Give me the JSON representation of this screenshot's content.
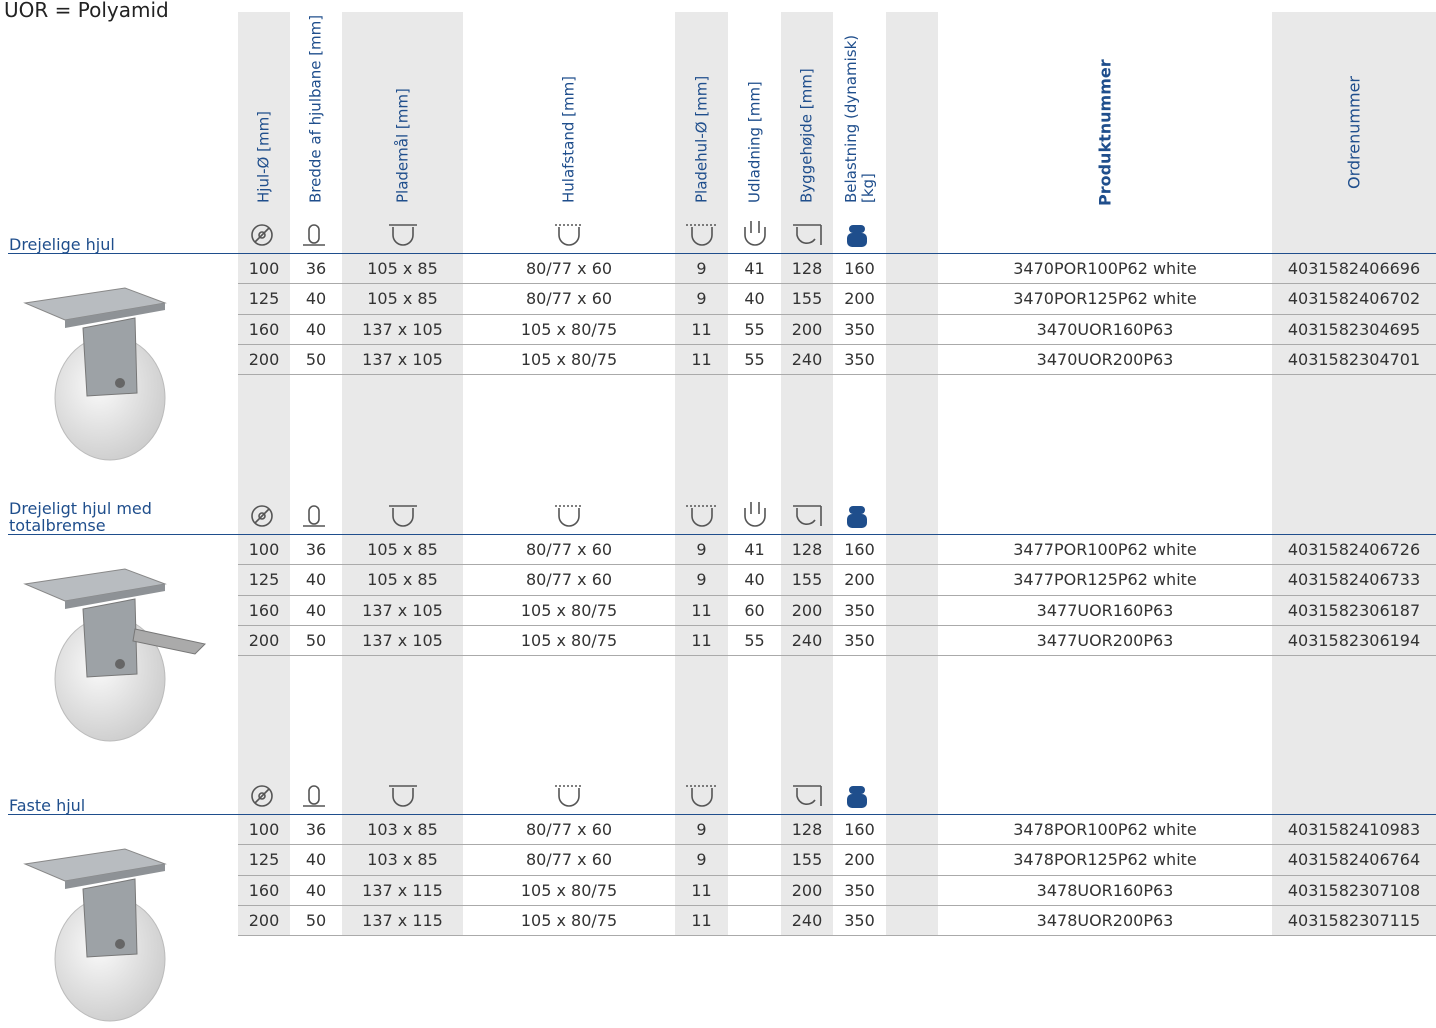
{
  "title": "UOR = Polyamid",
  "columns": [
    "Hjul-Ø [mm]",
    "Bredde af hjulbane [mm]",
    "Plademål [mm]",
    "Hulafstand [mm]",
    "Pladehul-Ø [mm]",
    "Udladning [mm]",
    "Byggehøjde [mm]",
    "Belastning (dynamisk) [kg]",
    "Produktnummer",
    "Ordrenummer"
  ],
  "sections": [
    {
      "label": "Drejelige hjul",
      "rows": [
        [
          "100",
          "36",
          "105 x 85",
          "80/77 x 60",
          "9",
          "41",
          "128",
          "160",
          "3470POR100P62 white",
          "4031582406696"
        ],
        [
          "125",
          "40",
          "105 x 85",
          "80/77 x 60",
          "9",
          "40",
          "155",
          "200",
          "3470POR125P62 white",
          "4031582406702"
        ],
        [
          "160",
          "40",
          "137 x 105",
          "105 x 80/75",
          "11",
          "55",
          "200",
          "350",
          "3470UOR160P63",
          "4031582304695"
        ],
        [
          "200",
          "50",
          "137 x 105",
          "105 x 80/75",
          "11",
          "55",
          "240",
          "350",
          "3470UOR200P63",
          "4031582304701"
        ]
      ]
    },
    {
      "label": "Drejeligt hjul med totalbremse",
      "rows": [
        [
          "100",
          "36",
          "105 x 85",
          "80/77 x 60",
          "9",
          "41",
          "128",
          "160",
          "3477POR100P62 white",
          "4031582406726"
        ],
        [
          "125",
          "40",
          "105 x 85",
          "80/77 x 60",
          "9",
          "40",
          "155",
          "200",
          "3477POR125P62 white",
          "4031582406733"
        ],
        [
          "160",
          "40",
          "137 x 105",
          "105 x 80/75",
          "11",
          "60",
          "200",
          "350",
          "3477UOR160P63",
          "4031582306187"
        ],
        [
          "200",
          "50",
          "137 x 105",
          "105 x 80/75",
          "11",
          "55",
          "240",
          "350",
          "3477UOR200P63",
          "4031582306194"
        ]
      ]
    },
    {
      "label": "Faste hjul",
      "rows": [
        [
          "100",
          "36",
          "103 x 85",
          "80/77 x 60",
          "9",
          null,
          "128",
          "160",
          "3478POR100P62 white",
          "4031582410983"
        ],
        [
          "125",
          "40",
          "103 x 85",
          "80/77 x 60",
          "9",
          null,
          "155",
          "200",
          "3478POR125P62 white",
          "4031582406764"
        ],
        [
          "160",
          "40",
          "137 x 115",
          "105 x 80/75",
          "11",
          null,
          "200",
          "350",
          "3478UOR160P63",
          "4031582307108"
        ],
        [
          "200",
          "50",
          "137 x 115",
          "105 x 80/75",
          "11",
          null,
          "240",
          "350",
          "3478UOR200P63",
          "4031582307115"
        ]
      ]
    }
  ]
}
